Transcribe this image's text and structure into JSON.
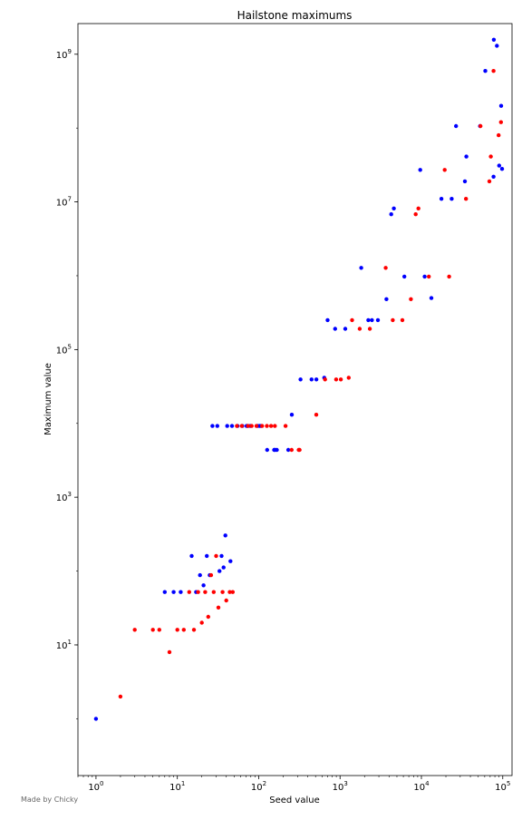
{
  "chart_data": {
    "type": "scatter",
    "title": "Hailstone maximums",
    "xlabel": "Seed value",
    "ylabel": "Maximum value",
    "xscale": "log",
    "yscale": "log",
    "xlim": [
      0.6,
      130000
    ],
    "ylim": [
      0.17,
      2600000000
    ],
    "xticks": [
      {
        "value": 1,
        "base": "10",
        "exp": "0"
      },
      {
        "value": 10,
        "base": "10",
        "exp": "1"
      },
      {
        "value": 100,
        "base": "10",
        "exp": "2"
      },
      {
        "value": 1000,
        "base": "10",
        "exp": "3"
      },
      {
        "value": 10000,
        "base": "10",
        "exp": "4"
      },
      {
        "value": 100000,
        "base": "10",
        "exp": "5"
      }
    ],
    "yticks": [
      {
        "value": 10,
        "base": "10",
        "exp": "1"
      },
      {
        "value": 1000,
        "base": "10",
        "exp": "3"
      },
      {
        "value": 100000,
        "base": "10",
        "exp": "5"
      },
      {
        "value": 10000000,
        "base": "10",
        "exp": "7"
      },
      {
        "value": 1000000000,
        "base": "10",
        "exp": "9"
      }
    ],
    "grid": false,
    "legend": "none",
    "colors": {
      "odd_seeds": "#0000ff",
      "even_seeds": "#ff0000"
    },
    "series": [
      {
        "color": "#0000ff",
        "points": [
          [
            1,
            1
          ],
          [
            7,
            52
          ],
          [
            9,
            52
          ],
          [
            11,
            52
          ],
          [
            15,
            160
          ],
          [
            17,
            52
          ],
          [
            19,
            88
          ],
          [
            21,
            64
          ],
          [
            23,
            160
          ],
          [
            25,
            88
          ],
          [
            27,
            9232
          ],
          [
            31,
            9232
          ],
          [
            33,
            100
          ],
          [
            35,
            160
          ],
          [
            37,
            112
          ],
          [
            39,
            304
          ],
          [
            41,
            9232
          ],
          [
            45,
            136
          ],
          [
            47,
            9232
          ],
          [
            55,
            9232
          ],
          [
            63,
            9232
          ],
          [
            71,
            9232
          ],
          [
            73,
            9232
          ],
          [
            79,
            9232
          ],
          [
            97,
            9232
          ],
          [
            103,
            9232
          ],
          [
            107,
            9232
          ],
          [
            127,
            4372
          ],
          [
            155,
            4372
          ],
          [
            159,
            4372
          ],
          [
            167,
            4372
          ],
          [
            231,
            4372
          ],
          [
            255,
            13120
          ],
          [
            327,
            39364
          ],
          [
            447,
            39364
          ],
          [
            511,
            39364
          ],
          [
            639,
            41524
          ],
          [
            703,
            250504
          ],
          [
            871,
            190996
          ],
          [
            1161,
            190996
          ],
          [
            1819,
            1276936
          ],
          [
            2223,
            250504
          ],
          [
            2463,
            250504
          ],
          [
            2919,
            250504
          ],
          [
            3711,
            481624
          ],
          [
            4255,
            6810136
          ],
          [
            4591,
            8153620
          ],
          [
            6171,
            975400
          ],
          [
            9663,
            27114424
          ],
          [
            10971,
            975400
          ],
          [
            13255,
            497986
          ],
          [
            17647,
            11003416
          ],
          [
            23529,
            11003416
          ],
          [
            26623,
            106358020
          ],
          [
            34239,
            18976192
          ],
          [
            35655,
            41163712
          ],
          [
            52527,
            106358020
          ],
          [
            60975,
            593279152
          ],
          [
            77031,
            21933016
          ],
          [
            77671,
            1570824736
          ],
          [
            84701,
            1298937112
          ],
          [
            90217,
            31000000
          ],
          [
            95455,
            200000000
          ],
          [
            98079,
            28000000
          ]
        ]
      },
      {
        "color": "#ff0000",
        "points": [
          [
            2,
            2
          ],
          [
            3,
            16
          ],
          [
            5,
            16
          ],
          [
            6,
            16
          ],
          [
            8,
            8
          ],
          [
            10,
            16
          ],
          [
            12,
            16
          ],
          [
            14,
            52
          ],
          [
            16,
            16
          ],
          [
            18,
            52
          ],
          [
            20,
            20
          ],
          [
            22,
            52
          ],
          [
            24,
            24
          ],
          [
            26,
            88
          ],
          [
            28,
            52
          ],
          [
            30,
            160
          ],
          [
            32,
            32
          ],
          [
            36,
            52
          ],
          [
            40,
            40
          ],
          [
            44,
            52
          ],
          [
            48,
            52
          ],
          [
            54,
            9232
          ],
          [
            62,
            9232
          ],
          [
            74,
            9232
          ],
          [
            82,
            9232
          ],
          [
            94,
            9232
          ],
          [
            110,
            9232
          ],
          [
            126,
            9232
          ],
          [
            142,
            9232
          ],
          [
            158,
            9232
          ],
          [
            214,
            9232
          ],
          [
            254,
            4372
          ],
          [
            310,
            4372
          ],
          [
            318,
            4372
          ],
          [
            510,
            13120
          ],
          [
            654,
            39364
          ],
          [
            894,
            39364
          ],
          [
            1022,
            39364
          ],
          [
            1278,
            41524
          ],
          [
            1406,
            250504
          ],
          [
            1742,
            190996
          ],
          [
            2322,
            190996
          ],
          [
            3638,
            1276936
          ],
          [
            4446,
            250504
          ],
          [
            5838,
            250504
          ],
          [
            7422,
            481624
          ],
          [
            8510,
            6810136
          ],
          [
            9182,
            8153620
          ],
          [
            12342,
            975400
          ],
          [
            19326,
            27114424
          ],
          [
            21942,
            975400
          ],
          [
            35294,
            11003416
          ],
          [
            53246,
            106358020
          ],
          [
            68478,
            18976192
          ],
          [
            71310,
            41163712
          ],
          [
            77031,
            593279152
          ],
          [
            89000,
            80000000
          ],
          [
            95000,
            120000000
          ]
        ]
      }
    ]
  },
  "footer": {
    "credit": "Made by Chicky"
  }
}
